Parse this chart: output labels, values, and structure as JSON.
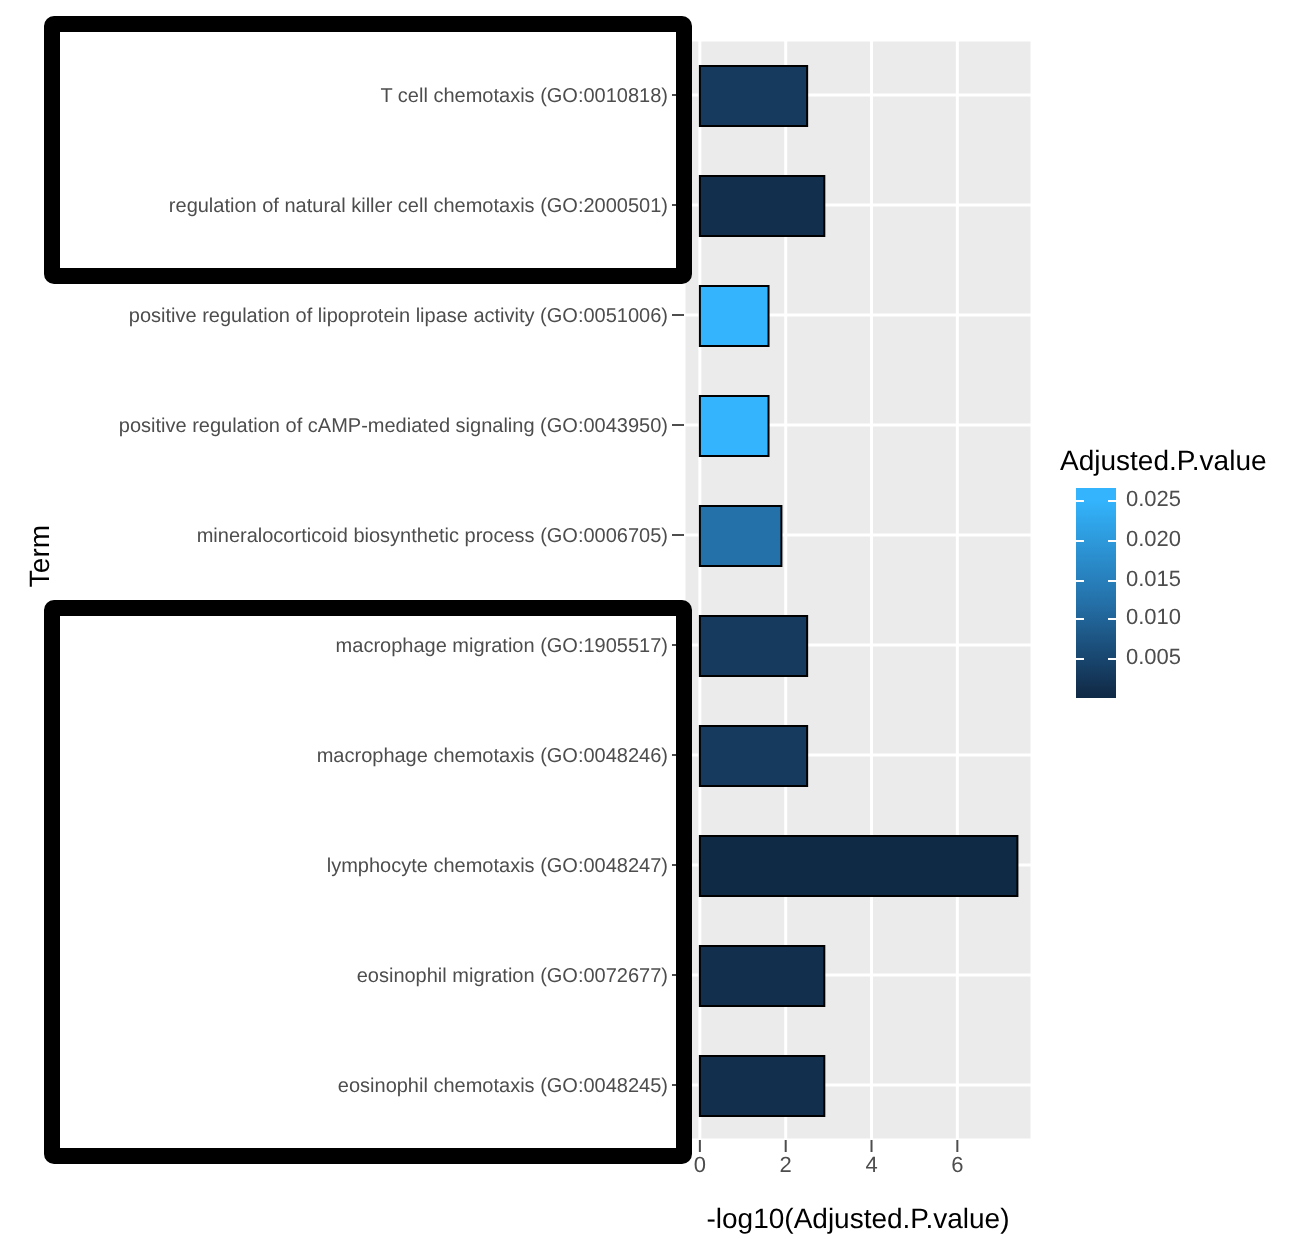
{
  "chart_data": {
    "type": "bar",
    "orientation": "horizontal",
    "xlabel": "-log10(Adjusted.P.value)",
    "ylabel": "Term",
    "clabel": "Adjusted.P.value",
    "categories": [
      "T cell chemotaxis (GO:0010818)",
      "regulation of natural killer cell chemotaxis (GO:2000501)",
      "positive regulation of lipoprotein lipase activity (GO:0051006)",
      "positive regulation of cAMP-mediated signaling (GO:0043950)",
      "mineralocorticoid biosynthetic process (GO:0006705)",
      "macrophage migration (GO:1905517)",
      "macrophage chemotaxis (GO:0048246)",
      "lymphocyte chemotaxis (GO:0048247)",
      "eosinophil migration (GO:0072677)",
      "eosinophil chemotaxis (GO:0048245)"
    ],
    "values": [
      2.5,
      2.9,
      1.6,
      1.6,
      1.9,
      2.5,
      2.5,
      7.4,
      2.9,
      2.9
    ],
    "cvalues": [
      0.003,
      0.0013,
      0.025,
      0.025,
      0.012,
      0.003,
      0.003,
      0,
      0.0013,
      0.0013
    ],
    "colors": [
      "#153a5e",
      "#132f4e",
      "#33b4fd",
      "#33b4fd",
      "#2470a8",
      "#153a5e",
      "#153a5e",
      "#0e2a45",
      "#132f4e",
      "#132f4e"
    ],
    "clim": [
      0,
      0.0265
    ],
    "cticks": [
      0.005,
      {
        "value": 0.01,
        "label": "0.010"
      },
      0.015,
      {
        "value": 0.02,
        "label": "0.020"
      },
      0.025
    ],
    "xlim": [
      -0.37,
      7.74
    ],
    "xticks": [
      0,
      2,
      4,
      6
    ],
    "grid": true
  }
}
